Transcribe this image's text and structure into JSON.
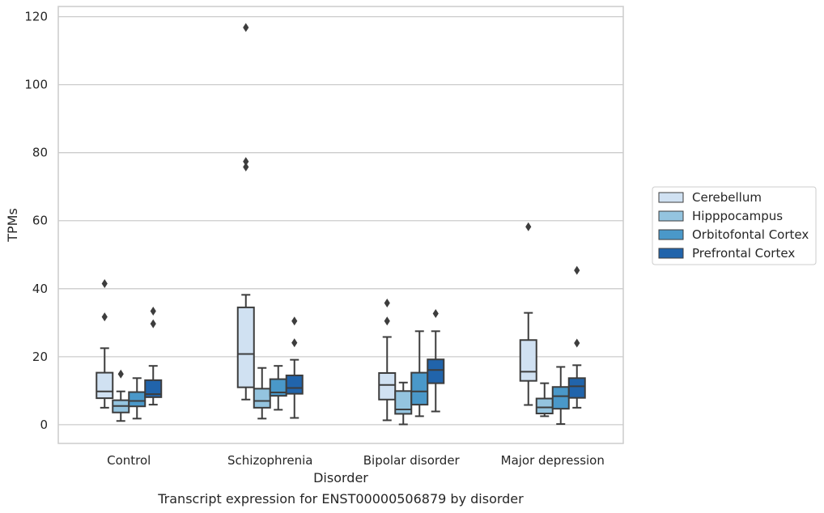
{
  "chart_data": {
    "type": "box",
    "title": "",
    "caption": "Transcript expression for ENST00000506879 by disorder",
    "xlabel": "Disorder",
    "ylabel": "TPMs",
    "ylim": [
      -5.5,
      123
    ],
    "yticks": [
      0,
      20,
      40,
      60,
      80,
      100,
      120
    ],
    "grid": true,
    "legend_position": "right",
    "categories": [
      "Control",
      "Schizophrenia",
      "Bipolar disorder",
      "Major depression"
    ],
    "series": [
      {
        "name": "Cerebellum",
        "color": "#d0e1f2",
        "boxes": [
          {
            "whislo": 5,
            "q1": 7.8,
            "med": 9.8,
            "q3": 15.3,
            "whishi": 22.5,
            "fliers": [
              31.7,
              41.5
            ]
          },
          {
            "whislo": 7.4,
            "q1": 11,
            "med": 20.8,
            "q3": 34.5,
            "whishi": 38.2,
            "fliers": [
              75.8,
              77.4,
              116.8
            ]
          },
          {
            "whislo": 1.3,
            "q1": 7.4,
            "med": 11.7,
            "q3": 15.2,
            "whishi": 25.8,
            "fliers": [
              30.5,
              35.8
            ]
          },
          {
            "whislo": 5.8,
            "q1": 12.9,
            "med": 15.6,
            "q3": 24.9,
            "whishi": 32.9,
            "fliers": [
              58.2
            ]
          }
        ]
      },
      {
        "name": "Hipppocampus",
        "color": "#94c4df",
        "boxes": [
          {
            "whislo": 1.1,
            "q1": 3.6,
            "med": 5.5,
            "q3": 7.2,
            "whishi": 9.8,
            "fliers": [
              14.9
            ]
          },
          {
            "whislo": 1.8,
            "q1": 5,
            "med": 7,
            "q3": 10.6,
            "whishi": 16.7,
            "fliers": []
          },
          {
            "whislo": 0.1,
            "q1": 3.2,
            "med": 4.5,
            "q3": 9.9,
            "whishi": 12.4,
            "fliers": []
          },
          {
            "whislo": 2.5,
            "q1": 3.3,
            "med": 5.1,
            "q3": 7.7,
            "whishi": 12.2,
            "fliers": []
          }
        ]
      },
      {
        "name": "Orbitofontal Cortex",
        "color": "#4a98c9",
        "boxes": [
          {
            "whislo": 1.8,
            "q1": 5.4,
            "med": 7,
            "q3": 9.6,
            "whishi": 13.7,
            "fliers": []
          },
          {
            "whislo": 4.4,
            "q1": 8.5,
            "med": 9.5,
            "q3": 13.4,
            "whishi": 17.3,
            "fliers": []
          },
          {
            "whislo": 2.5,
            "q1": 5.9,
            "med": 9.8,
            "q3": 15.3,
            "whishi": 27.5,
            "fliers": []
          },
          {
            "whislo": 0.2,
            "q1": 4.7,
            "med": 8.4,
            "q3": 11.1,
            "whishi": 17,
            "fliers": []
          }
        ]
      },
      {
        "name": "Prefrontal Cortex",
        "color": "#2164ab",
        "boxes": [
          {
            "whislo": 5.9,
            "q1": 8.1,
            "med": 9,
            "q3": 13.1,
            "whishi": 17.3,
            "fliers": [
              29.7,
              33.4
            ]
          },
          {
            "whislo": 2,
            "q1": 9.1,
            "med": 10.8,
            "q3": 14.5,
            "whishi": 19.1,
            "fliers": [
              24.1,
              30.5
            ]
          },
          {
            "whislo": 3.9,
            "q1": 12.2,
            "med": 16.1,
            "q3": 19.2,
            "whishi": 27.5,
            "fliers": [
              32.7
            ]
          },
          {
            "whislo": 5,
            "q1": 7.9,
            "med": 11.3,
            "q3": 13.7,
            "whishi": 17.5,
            "fliers": [
              24,
              45.4
            ]
          }
        ]
      }
    ]
  }
}
